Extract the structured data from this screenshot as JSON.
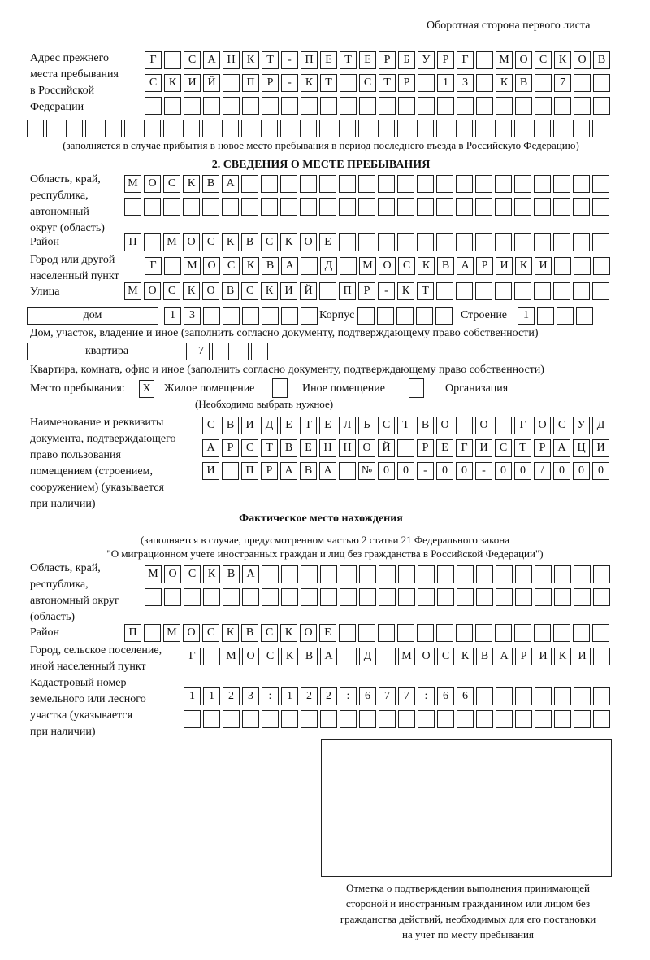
{
  "page_header": "Оборотная сторона первого листа",
  "previous_address": {
    "label": [
      "Адрес прежнего",
      "места пребывания",
      "в Российской",
      "Федерации"
    ],
    "rows": [
      "Г САНКТ-ПЕТЕРБУРГ МОСКОВ",
      "СКИЙ ПР-КТ СТР 13 КВ 7  ",
      "                        ",
      "                              "
    ],
    "note": "(заполняется в случае прибытия в новое место пребывания в период последнего въезда в Российскую Федерацию)"
  },
  "section2": {
    "title": "2. СВЕДЕНИЯ О МЕСТЕ ПРЕБЫВАНИЯ",
    "region": {
      "label": [
        "Область, край,",
        "республика,",
        "автономный",
        "округ (область)"
      ],
      "rows": [
        "МОСКВА                   ",
        "                         "
      ]
    },
    "district": {
      "label": "Район",
      "row": "П МОСКВСКОЕ              "
    },
    "city": {
      "label": [
        "Город или другой",
        "населенный пункт"
      ],
      "row": "Г МОСКВА Д МОСКВАРИКИ   "
    },
    "street": {
      "label": "Улица",
      "row": "МОСКОВСКИЙ ПР-КТ         "
    },
    "house": {
      "type": "дом",
      "number": "13      ",
      "korpus_label": "Корпус",
      "korpus": "     ",
      "stroenie_label": "Строение",
      "stroenie": "1   ",
      "note": "Дом, участок, владение и иное (заполнить согласно документу, подтверждающему право собственности)"
    },
    "apartment": {
      "type": "квартира",
      "number": "7   ",
      "note": "Квартира, комната, офис и иное (заполнить согласно документу, подтверждающему право собственности)"
    },
    "place_type": {
      "label": "Место пребывания:",
      "options": [
        {
          "label": "Жилое помещение",
          "mark": "X"
        },
        {
          "label": "Иное помещение",
          "mark": ""
        },
        {
          "label": "Организация",
          "mark": ""
        }
      ],
      "hint": "(Необходимо выбрать нужное)"
    },
    "document": {
      "label": [
        "Наименование и реквизиты",
        "документа, подтверждающего",
        "право пользования",
        "помещением (строением,",
        "сооружением) (указывается",
        "при наличии)"
      ],
      "rows": [
        "СВИДЕТЕЛЬСТВО О ГОСУД",
        "АРСТВЕННОЙ РЕГИСТРАЦИ",
        "И ПРАВА №00-00-00/000"
      ]
    }
  },
  "actual_location": {
    "title": "Фактическое место нахождения",
    "note": [
      "(заполняется в случае, предусмотренном частью 2 статьи 21 Федерального закона",
      "\"О миграционном учете иностранных граждан и лиц без гражданства в Российской Федерации\")"
    ],
    "region": {
      "label": [
        "Область, край,",
        "республика,",
        "автономный округ",
        "(область)"
      ],
      "rows": [
        "МОСКВА                  ",
        "                        "
      ]
    },
    "district": {
      "label": "Район",
      "row": "П МОСКВСКОЕ              "
    },
    "city": {
      "label": [
        "Город, сельское поселение,",
        "иной населенный пункт"
      ],
      "row": "Г МОСКВА Д МОСКВАРИКИ "
    },
    "cadastral": {
      "label": [
        "Кадастровый номер",
        "земельного или лесного",
        "участка (указывается",
        "при наличии)"
      ],
      "rows": [
        "1123:122:677:66       ",
        "                      "
      ]
    }
  },
  "confirmation_note": [
    "Отметка о подтверждении выполнения принимающей",
    "стороной и иностранным гражданином или лицом без",
    "гражданства действий, необходимых для его постановки",
    "на учет по месту пребывания"
  ]
}
